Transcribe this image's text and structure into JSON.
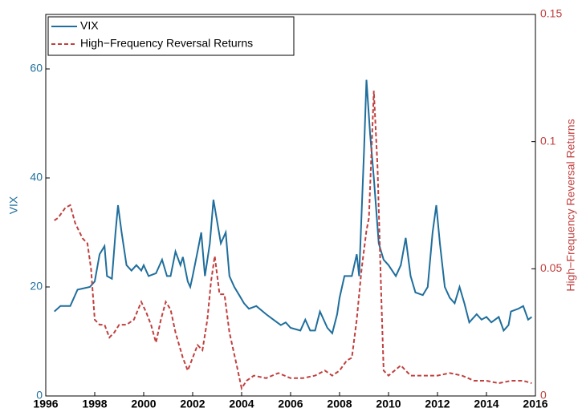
{
  "chart_data": {
    "type": "line",
    "xlim": [
      1996,
      2016
    ],
    "xticks": [
      1996,
      1998,
      2000,
      2002,
      2004,
      2006,
      2008,
      2010,
      2012,
      2014,
      2016
    ],
    "ylim": [
      0,
      70
    ],
    "yticks": [
      0,
      20,
      40,
      60
    ],
    "ylabel": "VIX",
    "y2lim": [
      0,
      0.15
    ],
    "y2ticks": [
      0,
      0.05,
      0.1,
      0.15
    ],
    "y2label": "High−Frequency Reversal Returns",
    "legend": "upper left",
    "series": [
      {
        "name": "VIX",
        "color": "#1f6e9c",
        "line_style": "solid",
        "x": [
          1996.35,
          1996.6,
          1997.0,
          1997.3,
          1997.8,
          1998.0,
          1998.2,
          1998.4,
          1998.5,
          1998.7,
          1998.85,
          1998.95,
          1999.1,
          1999.3,
          1999.5,
          1999.7,
          1999.9,
          2000.0,
          2000.2,
          2000.5,
          2000.75,
          2000.95,
          2001.1,
          2001.3,
          2001.5,
          2001.6,
          2001.8,
          2001.9,
          2002.0,
          2002.2,
          2002.35,
          2002.5,
          2002.7,
          2002.85,
          2003.0,
          2003.15,
          2003.35,
          2003.5,
          2003.7,
          2003.9,
          2004.1,
          2004.3,
          2004.6,
          2005.0,
          2005.3,
          2005.6,
          2005.8,
          2006.0,
          2006.4,
          2006.6,
          2006.8,
          2007.0,
          2007.2,
          2007.5,
          2007.7,
          2007.9,
          2008.0,
          2008.2,
          2008.5,
          2008.7,
          2008.8,
          2009.0,
          2009.1,
          2009.25,
          2009.4,
          2009.6,
          2009.8,
          2010.0,
          2010.3,
          2010.5,
          2010.7,
          2010.9,
          2011.1,
          2011.4,
          2011.6,
          2011.8,
          2011.95,
          2012.1,
          2012.3,
          2012.5,
          2012.7,
          2012.9,
          2013.1,
          2013.3,
          2013.6,
          2013.8,
          2014.0,
          2014.2,
          2014.5,
          2014.7,
          2014.9,
          2015.0,
          2015.3,
          2015.5,
          2015.7,
          2015.85
        ],
        "values": [
          15.5,
          16.5,
          16.5,
          19.5,
          20,
          21,
          26,
          27.5,
          22,
          21.5,
          30,
          35,
          30,
          24,
          23,
          24,
          23,
          24,
          22,
          22.5,
          25,
          22,
          22,
          26.5,
          24,
          25.5,
          21,
          20,
          22,
          26.5,
          30,
          22,
          28,
          36,
          32,
          28,
          30,
          22,
          20,
          18.5,
          17,
          16,
          16.5,
          15,
          14,
          13,
          13.5,
          12.5,
          12,
          14,
          12,
          12,
          15.5,
          12.5,
          11.5,
          15,
          18,
          22,
          22,
          26,
          22,
          45,
          58,
          48,
          40,
          28,
          25,
          24,
          22,
          24,
          29,
          22,
          19,
          18.5,
          20,
          30,
          35,
          28,
          20,
          18,
          17,
          20,
          17,
          13.5,
          15,
          14,
          14.5,
          13.5,
          14.5,
          12,
          13,
          15.5,
          16,
          16.5,
          14,
          14.5
        ]
      },
      {
        "name": "High−Frequency Reversal Returns",
        "color": "#c0403f",
        "line_style": "dashed",
        "axis": "y2",
        "x": [
          1996.35,
          1996.5,
          1996.8,
          1997.0,
          1997.2,
          1997.5,
          1997.7,
          1997.85,
          1998.0,
          1998.2,
          1998.4,
          1998.6,
          1998.8,
          1999.0,
          1999.3,
          1999.6,
          1999.9,
          2000.1,
          2000.3,
          2000.5,
          2000.7,
          2000.9,
          2001.1,
          2001.3,
          2001.6,
          2001.8,
          2002.0,
          2002.2,
          2002.4,
          2002.6,
          2002.75,
          2002.9,
          2003.1,
          2003.3,
          2003.5,
          2003.8,
          2004.0,
          2004.2,
          2004.5,
          2005.0,
          2005.5,
          2006.0,
          2006.5,
          2007.0,
          2007.4,
          2007.7,
          2008.0,
          2008.3,
          2008.5,
          2008.7,
          2008.9,
          2009.1,
          2009.2,
          2009.4,
          2009.55,
          2009.7,
          2009.8,
          2010.0,
          2010.5,
          2010.9,
          2011.5,
          2012.0,
          2012.5,
          2013.0,
          2013.5,
          2014.0,
          2014.5,
          2015.0,
          2015.5,
          2015.85
        ],
        "values": [
          0.069,
          0.07,
          0.074,
          0.075,
          0.068,
          0.062,
          0.06,
          0.05,
          0.03,
          0.028,
          0.028,
          0.023,
          0.025,
          0.028,
          0.028,
          0.03,
          0.037,
          0.033,
          0.028,
          0.021,
          0.03,
          0.037,
          0.034,
          0.025,
          0.015,
          0.01,
          0.015,
          0.02,
          0.018,
          0.03,
          0.045,
          0.055,
          0.04,
          0.04,
          0.025,
          0.012,
          0.003,
          0.006,
          0.008,
          0.007,
          0.009,
          0.007,
          0.007,
          0.008,
          0.01,
          0.008,
          0.01,
          0.014,
          0.015,
          0.03,
          0.05,
          0.065,
          0.07,
          0.12,
          0.09,
          0.04,
          0.01,
          0.008,
          0.012,
          0.008,
          0.008,
          0.008,
          0.009,
          0.008,
          0.006,
          0.006,
          0.005,
          0.006,
          0.006,
          0.005
        ]
      }
    ]
  }
}
